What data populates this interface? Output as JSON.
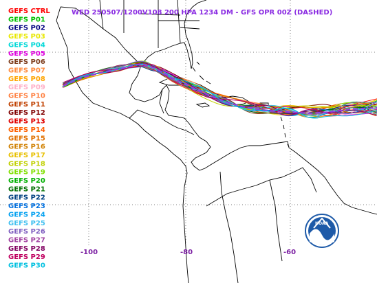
{
  "title": "WED 250507/1200V108  200 HPA 1234 DM - GFS OPR 00Z (DASHED)",
  "legend": [
    {
      "label": "GEFS CTRL",
      "color": "#ff0000"
    },
    {
      "label": "GEFS P01",
      "color": "#00c000"
    },
    {
      "label": "GEFS P02",
      "color": "#000080"
    },
    {
      "label": "GEFS P03",
      "color": "#e8e800"
    },
    {
      "label": "GEFS P04",
      "color": "#00d8d8"
    },
    {
      "label": "GEFS P05",
      "color": "#e000e0"
    },
    {
      "label": "GEFS P06",
      "color": "#804020"
    },
    {
      "label": "GEFS P07",
      "color": "#ff8c40"
    },
    {
      "label": "GEFS P08",
      "color": "#ffa500"
    },
    {
      "label": "GEFS P09",
      "color": "#ffb0c8"
    },
    {
      "label": "GEFS P10",
      "color": "#ff8040"
    },
    {
      "label": "GEFS P11",
      "color": "#c04000"
    },
    {
      "label": "GEFS P12",
      "color": "#800000"
    },
    {
      "label": "GEFS P13",
      "color": "#e00000"
    },
    {
      "label": "GEFS P14",
      "color": "#ff6000"
    },
    {
      "label": "GEFS P15",
      "color": "#e07000"
    },
    {
      "label": "GEFS P16",
      "color": "#d08000"
    },
    {
      "label": "GEFS P17",
      "color": "#e8c000"
    },
    {
      "label": "GEFS P18",
      "color": "#c0d000"
    },
    {
      "label": "GEFS P19",
      "color": "#80e000"
    },
    {
      "label": "GEFS P20",
      "color": "#00b000"
    },
    {
      "label": "GEFS P21",
      "color": "#007000"
    },
    {
      "label": "GEFS P22",
      "color": "#004080"
    },
    {
      "label": "GEFS P23",
      "color": "#0070e0"
    },
    {
      "label": "GEFS P24",
      "color": "#00a0f0"
    },
    {
      "label": "GEFS P25",
      "color": "#40c0f0"
    },
    {
      "label": "GEFS P26",
      "color": "#8060c0"
    },
    {
      "label": "GEFS P27",
      "color": "#a040a0"
    },
    {
      "label": "GEFS P28",
      "color": "#800060"
    },
    {
      "label": "GEFS P29",
      "color": "#c00060"
    },
    {
      "label": "GEFS P30",
      "color": "#00c0e0"
    }
  ],
  "longitude_labels": [
    "-100",
    "-80",
    "-60"
  ],
  "opr_color": "#9040e0",
  "logo": {
    "text": "NOAA",
    "bg_color": "#1e5aa8",
    "accent_color": "#ffffff"
  }
}
